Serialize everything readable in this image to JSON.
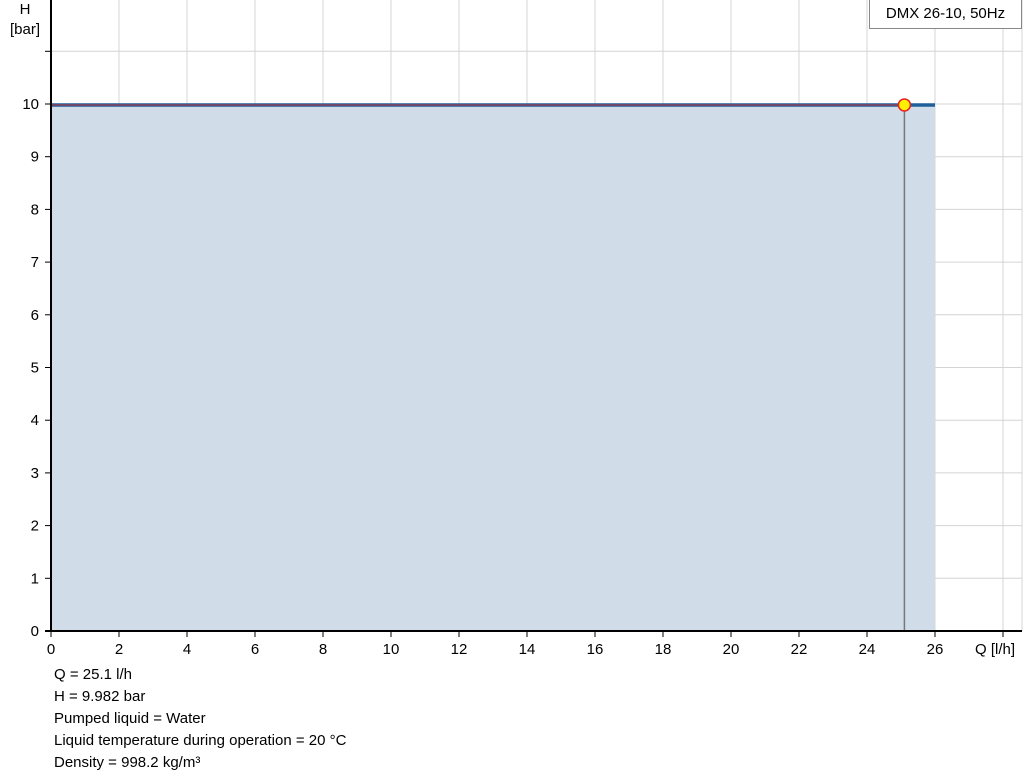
{
  "chart_data": {
    "type": "area",
    "xlabel": "Q [l/h]",
    "ylabel_line1": "H",
    "ylabel_line2": "[bar]",
    "xlim": [
      0,
      28.5
    ],
    "ylim": [
      0,
      12
    ],
    "xticks": [
      0,
      2,
      4,
      6,
      8,
      10,
      12,
      14,
      16,
      18,
      20,
      22,
      24,
      26
    ],
    "yticks": [
      0,
      1,
      2,
      3,
      4,
      5,
      6,
      7,
      8,
      9,
      10
    ],
    "grid": true,
    "legend": "DMX 26-10, 50Hz",
    "legend_position": "top-right",
    "series": [
      {
        "name": "DMX 26-10, 50Hz",
        "x": [
          0,
          26
        ],
        "y": [
          9.982,
          9.982
        ],
        "color": "#1f5f9a",
        "fill": "#d0dce8"
      }
    ],
    "operating_point": {
      "x": 25.1,
      "y": 9.982,
      "color": "#ffef00",
      "edge": "#e8202a"
    }
  },
  "info": [
    "Q = 25.1 l/h",
    "H = 9.982 bar",
    "Pumped liquid = Water",
    "Liquid temperature during operation = 20 °C",
    "Density = 998.2 kg/m³"
  ]
}
